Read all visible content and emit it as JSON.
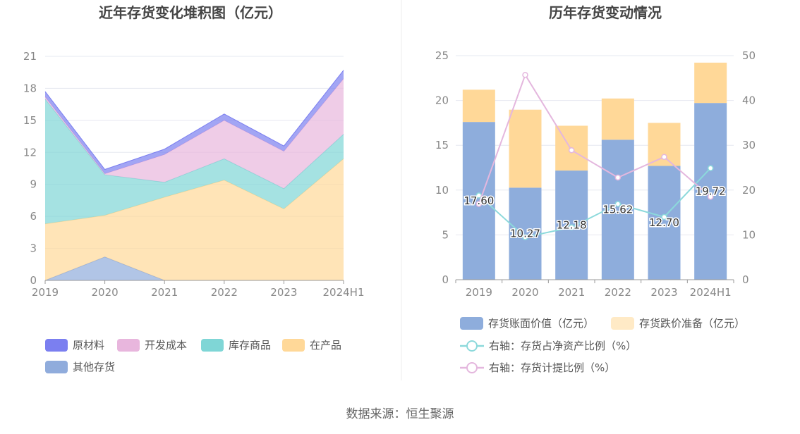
{
  "source": "数据来源：恒生聚源",
  "colors": {
    "raw_materials": "#7b7ff0",
    "dev_cost": "#e8b6dd",
    "goods": "#7fd6d6",
    "wip": "#ffd898",
    "other": "#90acdc",
    "book_value": "#8eaddc",
    "impairment": "#ffd898",
    "ratio_net_assets": "#8cd9db",
    "ratio_impairment": "#e4b7de",
    "grid": "#e6e8f0",
    "axis": "#999999"
  },
  "chart_data": [
    {
      "type": "area",
      "stacked": true,
      "title": "近年存货变化堆积图（亿元）",
      "categories": [
        "2019",
        "2020",
        "2021",
        "2022",
        "2023",
        "2024H1"
      ],
      "ylim": [
        0,
        21
      ],
      "yticks": [
        "0",
        "3",
        "6",
        "9",
        "12",
        "15",
        "18",
        "21"
      ],
      "grid": true,
      "legend_position": "bottom",
      "series": [
        {
          "name": "其他存货",
          "values": [
            0,
            2.2,
            0,
            0,
            0,
            0
          ],
          "color_key": "other"
        },
        {
          "name": "在产品",
          "values": [
            5.3,
            3.9,
            7.8,
            9.4,
            6.7,
            11.4
          ],
          "color_key": "wip"
        },
        {
          "name": "库存商品",
          "values": [
            11.7,
            3.8,
            1.4,
            2.0,
            1.9,
            2.3
          ],
          "color_key": "goods"
        },
        {
          "name": "开发成本",
          "values": [
            0.2,
            0.1,
            2.6,
            3.6,
            3.5,
            5.2
          ],
          "color_key": "dev_cost"
        },
        {
          "name": "原材料",
          "values": [
            0.5,
            0.4,
            0.5,
            0.6,
            0.5,
            0.8
          ],
          "color_key": "raw_materials"
        }
      ],
      "legend": [
        {
          "name": "原材料",
          "color_key": "raw_materials"
        },
        {
          "name": "开发成本",
          "color_key": "dev_cost"
        },
        {
          "name": "库存商品",
          "color_key": "goods"
        },
        {
          "name": "在产品",
          "color_key": "wip"
        },
        {
          "name": "其他存货",
          "color_key": "other"
        }
      ]
    },
    {
      "type": "bar",
      "stacked": true,
      "title": "历年存货变动情况",
      "categories": [
        "2019",
        "2020",
        "2021",
        "2022",
        "2023",
        "2024H1"
      ],
      "ylim": [
        0,
        25
      ],
      "yticks": [
        "0",
        "5",
        "10",
        "15",
        "20",
        "25"
      ],
      "y2lim": [
        0,
        50
      ],
      "y2ticks": [
        "0",
        "10",
        "20",
        "30",
        "40",
        "50"
      ],
      "grid": true,
      "legend_position": "bottom",
      "series": [
        {
          "name": "存货账面价值（亿元）",
          "values": [
            17.6,
            10.27,
            12.18,
            15.62,
            12.7,
            19.72
          ],
          "labels": [
            "17.60",
            "10.27",
            "12.18",
            "15.62",
            "12.70",
            "19.72"
          ],
          "color_key": "book_value"
        },
        {
          "name": "存货跌价准备（亿元）",
          "values": [
            3.6,
            8.7,
            5.0,
            4.6,
            4.8,
            4.5
          ],
          "color_key": "impairment"
        }
      ],
      "line_series": [
        {
          "name": "右轴：存货占净资产比例（%）",
          "axis": "right",
          "values": [
            18.8,
            9.5,
            11.7,
            16.9,
            14.0,
            24.9
          ],
          "color_key": "ratio_net_assets"
        },
        {
          "name": "右轴：存货计提比例（%）",
          "axis": "right",
          "values": [
            16.9,
            45.7,
            28.9,
            22.8,
            27.4,
            18.5
          ],
          "color_key": "ratio_impairment"
        }
      ]
    }
  ]
}
